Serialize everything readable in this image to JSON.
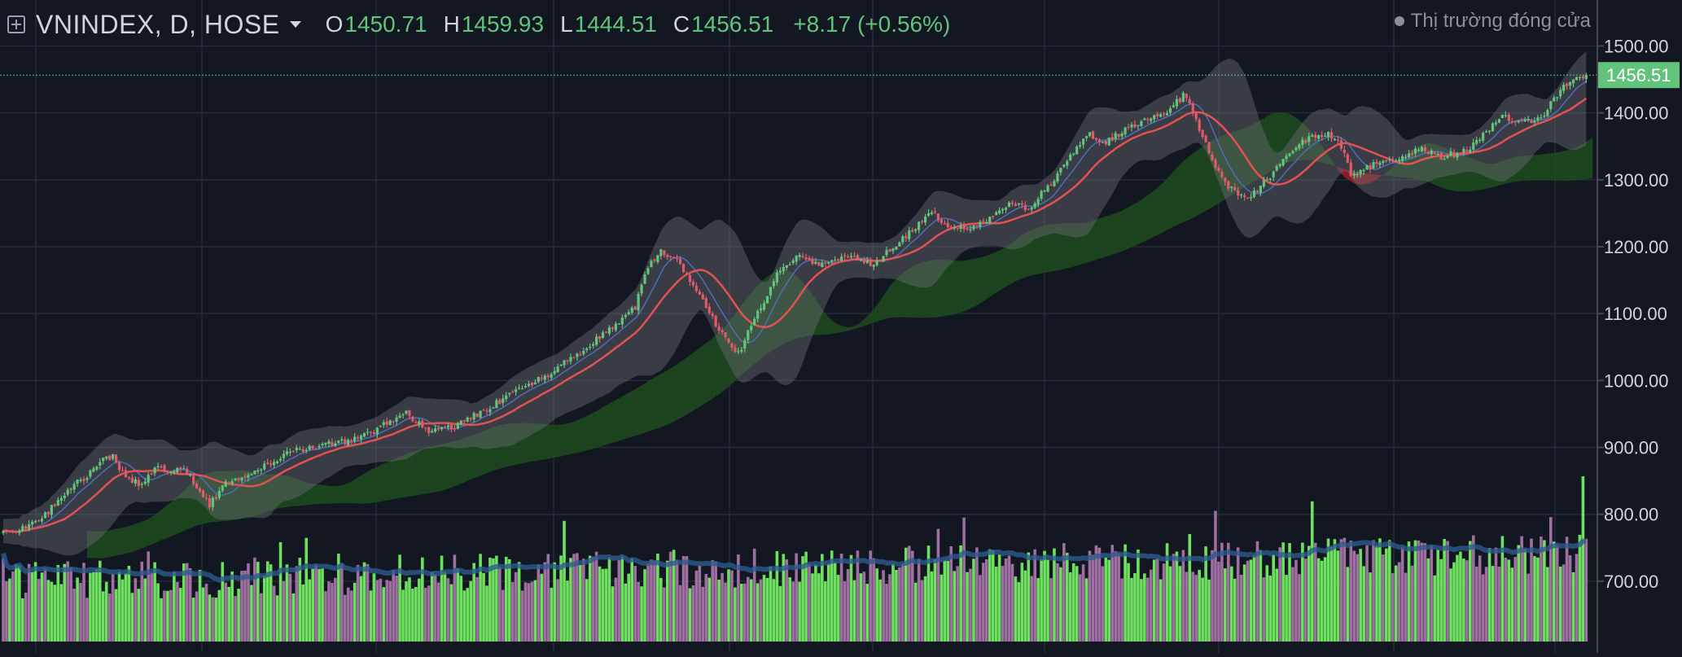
{
  "header": {
    "symbol": "VNINDEX, D, HOSE",
    "open_key": "O",
    "open": "1450.71",
    "high_key": "H",
    "high": "1459.93",
    "low_key": "L",
    "low": "1444.51",
    "close_key": "C",
    "close": "1456.51",
    "change": "+8.17 (+0.56%)",
    "market_status": "Thị trường đóng cửa"
  },
  "colors": {
    "background": "#131722",
    "grid": "#262b38",
    "up": "#62c37d",
    "down": "#e05a6a",
    "ma_red": "#e25252",
    "ma_blue": "#4a6fb8",
    "band": "#6a6b70",
    "cloud_green": "#1f4d1f",
    "cloud_red": "#a32020",
    "vol_green": "#6ee05f",
    "vol_purple": "#9e6fa0",
    "vol_ma": "#2d5a8e",
    "price_tag": "#62c37d",
    "text": "#d1d4dc",
    "muted": "#8c8f99"
  },
  "chart_data": {
    "type": "candlestick",
    "price_axis_ticks": [
      "1500.00",
      "1400.00",
      "1300.00",
      "1200.00",
      "1100.00",
      "1000.00",
      "900.00",
      "800.00",
      "700.00"
    ],
    "ylim": [
      620,
      1525
    ],
    "last_price_label": "1456.51",
    "last_price": 1456.51,
    "trend_anchors": [
      [
        0,
        775
      ],
      [
        8,
        782
      ],
      [
        14,
        805
      ],
      [
        20,
        838
      ],
      [
        26,
        857
      ],
      [
        30,
        880
      ],
      [
        34,
        887
      ],
      [
        38,
        855
      ],
      [
        42,
        845
      ],
      [
        48,
        870
      ],
      [
        50,
        865
      ],
      [
        56,
        872
      ],
      [
        60,
        838
      ],
      [
        64,
        815
      ],
      [
        70,
        850
      ],
      [
        80,
        870
      ],
      [
        90,
        895
      ],
      [
        100,
        905
      ],
      [
        110,
        912
      ],
      [
        115,
        925
      ],
      [
        120,
        940
      ],
      [
        125,
        952
      ],
      [
        131,
        925
      ],
      [
        140,
        930
      ],
      [
        150,
        958
      ],
      [
        160,
        985
      ],
      [
        170,
        1012
      ],
      [
        180,
        1045
      ],
      [
        190,
        1085
      ],
      [
        196,
        1110
      ],
      [
        200,
        1170
      ],
      [
        204,
        1195
      ],
      [
        210,
        1175
      ],
      [
        216,
        1125
      ],
      [
        222,
        1075
      ],
      [
        228,
        1040
      ],
      [
        234,
        1100
      ],
      [
        240,
        1160
      ],
      [
        246,
        1185
      ],
      [
        252,
        1175
      ],
      [
        258,
        1180
      ],
      [
        264,
        1185
      ],
      [
        270,
        1170
      ],
      [
        276,
        1200
      ],
      [
        282,
        1225
      ],
      [
        288,
        1250
      ],
      [
        294,
        1230
      ],
      [
        300,
        1225
      ],
      [
        306,
        1240
      ],
      [
        312,
        1265
      ],
      [
        318,
        1255
      ],
      [
        324,
        1290
      ],
      [
        330,
        1330
      ],
      [
        336,
        1370
      ],
      [
        342,
        1355
      ],
      [
        348,
        1375
      ],
      [
        354,
        1390
      ],
      [
        360,
        1400
      ],
      [
        366,
        1425
      ],
      [
        368,
        1410
      ],
      [
        372,
        1365
      ],
      [
        376,
        1320
      ],
      [
        380,
        1290
      ],
      [
        386,
        1270
      ],
      [
        392,
        1300
      ],
      [
        398,
        1340
      ],
      [
        404,
        1360
      ],
      [
        410,
        1370
      ],
      [
        414,
        1360
      ],
      [
        418,
        1310
      ],
      [
        424,
        1320
      ],
      [
        430,
        1330
      ],
      [
        436,
        1340
      ],
      [
        440,
        1345
      ],
      [
        446,
        1335
      ],
      [
        452,
        1340
      ],
      [
        458,
        1360
      ],
      [
        464,
        1395
      ],
      [
        470,
        1390
      ],
      [
        474,
        1385
      ],
      [
        478,
        1400
      ],
      [
        484,
        1440
      ],
      [
        490,
        1455
      ],
      [
        491,
        1456.51
      ]
    ],
    "n_candles": 492,
    "up_color": "#62c37d",
    "down_color": "#e05a6a",
    "overlays": [
      "moving average (red)",
      "moving average (blue)",
      "bands",
      "cloud"
    ],
    "volume_panel": true
  }
}
